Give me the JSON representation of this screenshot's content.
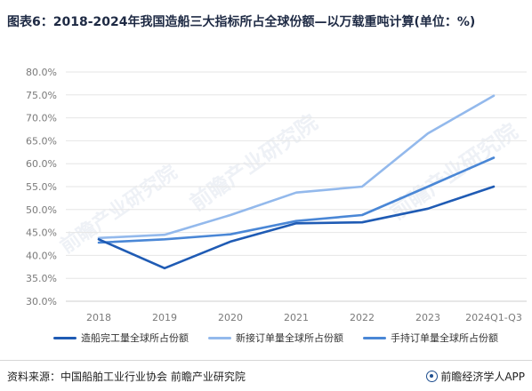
{
  "title": "图表6：2018-2024年我国造船三大指标所占全球份额—以万载重吨计算(单位：%)",
  "source": "资料来源：中国船舶工业行业协会 前瞻产业研究院",
  "brand": "前瞻经济学人APP",
  "watermark": "前瞻产业研究院",
  "colors": {
    "series1": "#1f5bb4",
    "series2": "#93b9ec",
    "series3": "#4a87d6",
    "grid": "#e6e6e6",
    "tick": "#7a7a7a"
  },
  "chart_data": {
    "type": "line",
    "categories": [
      "2018",
      "2019",
      "2020",
      "2021",
      "2022",
      "2023",
      "2024Q1-Q3"
    ],
    "yticks": [
      "30.0%",
      "35.0%",
      "40.0%",
      "45.0%",
      "50.0%",
      "55.0%",
      "60.0%",
      "65.0%",
      "70.0%",
      "75.0%",
      "80.0%"
    ],
    "ylim": [
      30,
      80
    ],
    "grid": true,
    "legend_position": "bottom",
    "series": [
      {
        "name": "造船完工量全球所占份额",
        "values": [
          43.5,
          37.2,
          43.0,
          47.0,
          47.2,
          50.2,
          55.0
        ]
      },
      {
        "name": "新接订单量全球所占份额",
        "values": [
          43.8,
          44.5,
          48.8,
          53.7,
          55.0,
          66.6,
          74.8
        ]
      },
      {
        "name": "手持订单量全球所占份额",
        "values": [
          42.8,
          43.5,
          44.6,
          47.5,
          48.8,
          55.0,
          61.3
        ]
      }
    ]
  }
}
